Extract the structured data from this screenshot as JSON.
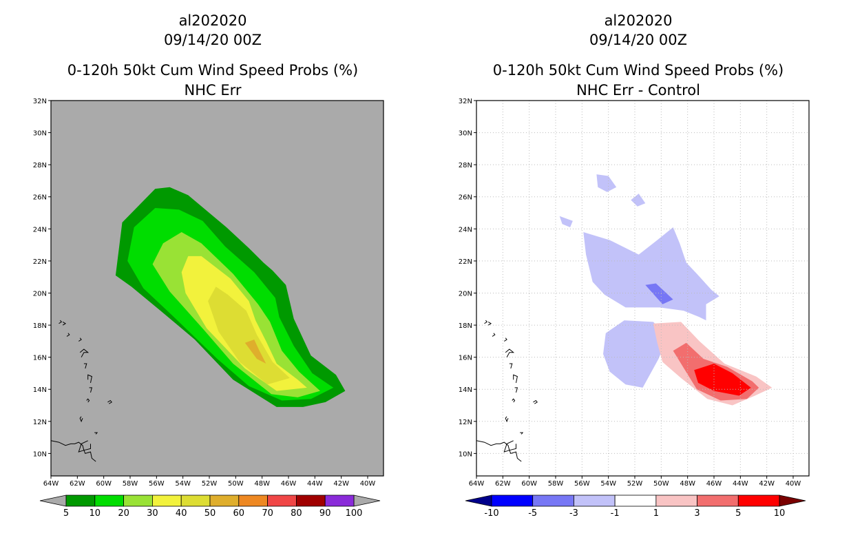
{
  "chart_data": [
    {
      "type": "contour-map",
      "title_lines": [
        "al202020",
        "09/14/20 00Z",
        "0-120h 50kt Cum Wind Speed Probs (%)",
        "NHC Err"
      ],
      "x_ticks": [
        "64W",
        "62W",
        "60W",
        "58W",
        "56W",
        "54W",
        "52W",
        "50W",
        "48W",
        "46W",
        "44W",
        "42W",
        "40W"
      ],
      "y_ticks": [
        "32N",
        "30N",
        "28N",
        "26N",
        "24N",
        "22N",
        "20N",
        "18N",
        "16N",
        "14N",
        "12N",
        "10N"
      ],
      "xlim_lon": [
        -64,
        -38.8
      ],
      "ylim_lat": [
        8.6,
        32
      ],
      "background": "#aaaaaa",
      "colorbar": {
        "labels": [
          "5",
          "10",
          "20",
          "30",
          "40",
          "50",
          "60",
          "70",
          "80",
          "90",
          "100"
        ],
        "colors": [
          "#009900",
          "#00dd00",
          "#99e235",
          "#f2f23c",
          "#dddd33",
          "#dfae2c",
          "#ee8822",
          "#f04646",
          "#a00000",
          "#8a2bd9"
        ],
        "end_colors": [
          "#aaaaaa",
          "#aaaaaa"
        ]
      },
      "contours": [
        {
          "level": 5,
          "color": "#009900",
          "polygon": [
            [
              -59.1,
              21.1
            ],
            [
              -58.6,
              24.4
            ],
            [
              -56.1,
              26.5
            ],
            [
              -55,
              26.6
            ],
            [
              -53.6,
              26.1
            ],
            [
              -50.7,
              24.1
            ],
            [
              -49,
              22.8
            ],
            [
              -47.9,
              21.9
            ],
            [
              -47.2,
              21.4
            ],
            [
              -46.2,
              20.5
            ],
            [
              -45.6,
              18.4
            ],
            [
              -44.3,
              16.1
            ],
            [
              -42.4,
              14.9
            ],
            [
              -41.7,
              13.9
            ],
            [
              -43.2,
              13.2
            ],
            [
              -44.9,
              12.9
            ],
            [
              -46.9,
              12.9
            ],
            [
              -50.2,
              14.6
            ],
            [
              -53.1,
              17.1
            ],
            [
              -55.7,
              18.9
            ],
            [
              -57.9,
              20.4
            ]
          ]
        },
        {
          "level": 10,
          "color": "#00dd00",
          "polygon": [
            [
              -58.2,
              22
            ],
            [
              -57.7,
              24.1
            ],
            [
              -56.1,
              25.3
            ],
            [
              -54.3,
              25.2
            ],
            [
              -52.5,
              24.5
            ],
            [
              -50.8,
              22.9
            ],
            [
              -48.6,
              21.3
            ],
            [
              -47,
              19.7
            ],
            [
              -46.7,
              18.5
            ],
            [
              -45.6,
              16.7
            ],
            [
              -44.2,
              15
            ],
            [
              -42.6,
              14.1
            ],
            [
              -44.3,
              13.4
            ],
            [
              -46.5,
              13.3
            ],
            [
              -49,
              14.2
            ],
            [
              -51.4,
              15.9
            ],
            [
              -54.8,
              18.6
            ],
            [
              -57,
              20.3
            ]
          ]
        },
        {
          "level": 20,
          "color": "#99e235",
          "polygon": [
            [
              -56.3,
              21.8
            ],
            [
              -55.5,
              23.1
            ],
            [
              -54.1,
              23.8
            ],
            [
              -52.6,
              23.1
            ],
            [
              -50.2,
              21.2
            ],
            [
              -48.3,
              19.3
            ],
            [
              -47.4,
              18.2
            ],
            [
              -46.5,
              16.4
            ],
            [
              -45.2,
              15.1
            ],
            [
              -43.6,
              13.9
            ],
            [
              -45.3,
              13.5
            ],
            [
              -47.3,
              13.7
            ],
            [
              -50.2,
              15.6
            ],
            [
              -52.4,
              17.7
            ],
            [
              -55,
              20.1
            ]
          ]
        },
        {
          "level": 30,
          "color": "#f2f23c",
          "polygon": [
            [
              -54.1,
              21.3
            ],
            [
              -53.6,
              22.3
            ],
            [
              -52.6,
              22.3
            ],
            [
              -50.4,
              20.9
            ],
            [
              -49,
              19.5
            ],
            [
              -48.5,
              18.3
            ],
            [
              -47.7,
              17
            ],
            [
              -46.9,
              15.6
            ],
            [
              -45.3,
              14.6
            ],
            [
              -44.6,
              14.1
            ],
            [
              -46.9,
              13.9
            ],
            [
              -49.3,
              15.3
            ],
            [
              -52.2,
              17.8
            ],
            [
              -53.8,
              20
            ]
          ]
        },
        {
          "level": 40,
          "color": "#dddd33",
          "polygon": [
            [
              -52.1,
              19.5
            ],
            [
              -51.5,
              20.4
            ],
            [
              -50.6,
              19.9
            ],
            [
              -49.2,
              18.9
            ],
            [
              -48.4,
              17.4
            ],
            [
              -47.2,
              15.7
            ],
            [
              -45.9,
              14.7
            ],
            [
              -47.6,
              14.3
            ],
            [
              -49.7,
              15.7
            ],
            [
              -51.3,
              17.6
            ]
          ]
        },
        {
          "level": 50,
          "color": "#dfae2c",
          "polygon": [
            [
              -49.3,
              16.9
            ],
            [
              -48.4,
              15.9
            ],
            [
              -47.7,
              15.6
            ],
            [
              -48.2,
              16.4
            ],
            [
              -48.6,
              17.1
            ]
          ]
        }
      ]
    },
    {
      "type": "contour-map",
      "title_lines": [
        "al202020",
        "09/14/20 00Z",
        "0-120h 50kt Cum Wind Speed Probs (%)",
        "NHC Err - Control"
      ],
      "x_ticks": [
        "64W",
        "62W",
        "60W",
        "58W",
        "56W",
        "54W",
        "52W",
        "50W",
        "48W",
        "46W",
        "44W",
        "42W",
        "40W"
      ],
      "y_ticks": [
        "32N",
        "30N",
        "28N",
        "26N",
        "24N",
        "22N",
        "20N",
        "18N",
        "16N",
        "14N",
        "12N",
        "10N"
      ],
      "xlim_lon": [
        -64,
        -38.8
      ],
      "ylim_lat": [
        8.6,
        32
      ],
      "background": "#ffffff",
      "grid": true,
      "colorbar": {
        "labels": [
          "-10",
          "-5",
          "-3",
          "-1",
          "1",
          "3",
          "5",
          "10"
        ],
        "colors": [
          "#0000ff",
          "#7777f5",
          "#c2c2f9",
          "#ffffff",
          "#f9c4c4",
          "#f26e6e",
          "#ff0000"
        ],
        "end_colors": [
          "#00008b",
          "#7a0000"
        ]
      },
      "contours": [
        {
          "level": -3,
          "color": "#c2c2f9",
          "polygon": [
            [
              -55.9,
              23.8
            ],
            [
              -53.9,
              23.3
            ],
            [
              -51.7,
              22.4
            ],
            [
              -50.3,
              23.3
            ],
            [
              -49.1,
              24.1
            ],
            [
              -48.6,
              23.1
            ],
            [
              -48.1,
              21.9
            ],
            [
              -47.3,
              21.2
            ],
            [
              -46.2,
              20.2
            ],
            [
              -45.6,
              19.8
            ],
            [
              -46.6,
              19.3
            ],
            [
              -46.6,
              18.3
            ],
            [
              -47.1,
              18.5
            ],
            [
              -48.3,
              18.9
            ],
            [
              -50.1,
              19.1
            ],
            [
              -52.7,
              19.1
            ],
            [
              -54.3,
              19.9
            ],
            [
              -55.2,
              20.7
            ],
            [
              -55.7,
              22.4
            ]
          ]
        },
        {
          "level": -3,
          "color": "#c2c2f9",
          "polygon": [
            [
              -52.8,
              18.3
            ],
            [
              -50.6,
              18.2
            ],
            [
              -49.5,
              17.3
            ],
            [
              -50.2,
              15.9
            ],
            [
              -51.4,
              14.1
            ],
            [
              -52.7,
              14.3
            ],
            [
              -53.9,
              15.1
            ],
            [
              -54.4,
              16.2
            ],
            [
              -54.2,
              17.5
            ]
          ]
        },
        {
          "level": -3,
          "color": "#c2c2f9",
          "polygon": [
            [
              -57.7,
              24.8
            ],
            [
              -56.7,
              24.5
            ],
            [
              -56.9,
              24.1
            ],
            [
              -57.5,
              24.3
            ]
          ]
        },
        {
          "level": -3,
          "color": "#c2c2f9",
          "polygon": [
            [
              -54.9,
              27.4
            ],
            [
              -54,
              27.3
            ],
            [
              -53.4,
              26.6
            ],
            [
              -54.1,
              26.3
            ],
            [
              -54.8,
              26.6
            ]
          ]
        },
        {
          "level": -3,
          "color": "#c2c2f9",
          "polygon": [
            [
              -52.3,
              25.8
            ],
            [
              -51.7,
              26.2
            ],
            [
              -51.2,
              25.6
            ],
            [
              -51.8,
              25.4
            ]
          ]
        },
        {
          "level": -5,
          "color": "#7777f5",
          "polygon": [
            [
              -51.2,
              20.5
            ],
            [
              -50.4,
              20.6
            ],
            [
              -49.1,
              19.6
            ],
            [
              -49.9,
              19.3
            ]
          ]
        },
        {
          "level": 1,
          "color": "#f9c4c4",
          "polygon": [
            [
              -50.6,
              18.1
            ],
            [
              -48.5,
              18.2
            ],
            [
              -47.1,
              17
            ],
            [
              -45.2,
              15.6
            ],
            [
              -42.8,
              14.8
            ],
            [
              -41.6,
              14.1
            ],
            [
              -42.9,
              13.6
            ],
            [
              -44.6,
              13
            ],
            [
              -46.5,
              13.4
            ],
            [
              -48.5,
              14.7
            ],
            [
              -49.9,
              15.7
            ],
            [
              -50.3,
              16.9
            ]
          ]
        },
        {
          "level": 3,
          "color": "#f26e6e",
          "polygon": [
            [
              -49.1,
              16.4
            ],
            [
              -48.1,
              16.9
            ],
            [
              -46.8,
              15.9
            ],
            [
              -45,
              15.4
            ],
            [
              -43.1,
              14.5
            ],
            [
              -42.6,
              14.1
            ],
            [
              -43.5,
              13.4
            ],
            [
              -45.5,
              13.3
            ],
            [
              -47.3,
              14
            ]
          ]
        },
        {
          "level": 5,
          "color": "#ff0000",
          "polygon": [
            [
              -47.5,
              15.2
            ],
            [
              -46,
              15.6
            ],
            [
              -44.6,
              15
            ],
            [
              -43.2,
              14.1
            ],
            [
              -44.1,
              13.6
            ],
            [
              -46,
              13.9
            ],
            [
              -47.2,
              14.4
            ]
          ]
        }
      ]
    }
  ],
  "panels": [
    {
      "title_lines": [
        "al202020",
        "09/14/20 00Z",
        "0-120h 50kt Cum Wind Speed Probs (%)",
        "NHC Err"
      ]
    },
    {
      "title_lines": [
        "al202020",
        "09/14/20 00Z",
        "0-120h 50kt Cum Wind Speed Probs (%)",
        "NHC Err - Control"
      ]
    }
  ],
  "style": {
    "coast_color": "#000000",
    "grid_color": "#bbbbbb"
  }
}
